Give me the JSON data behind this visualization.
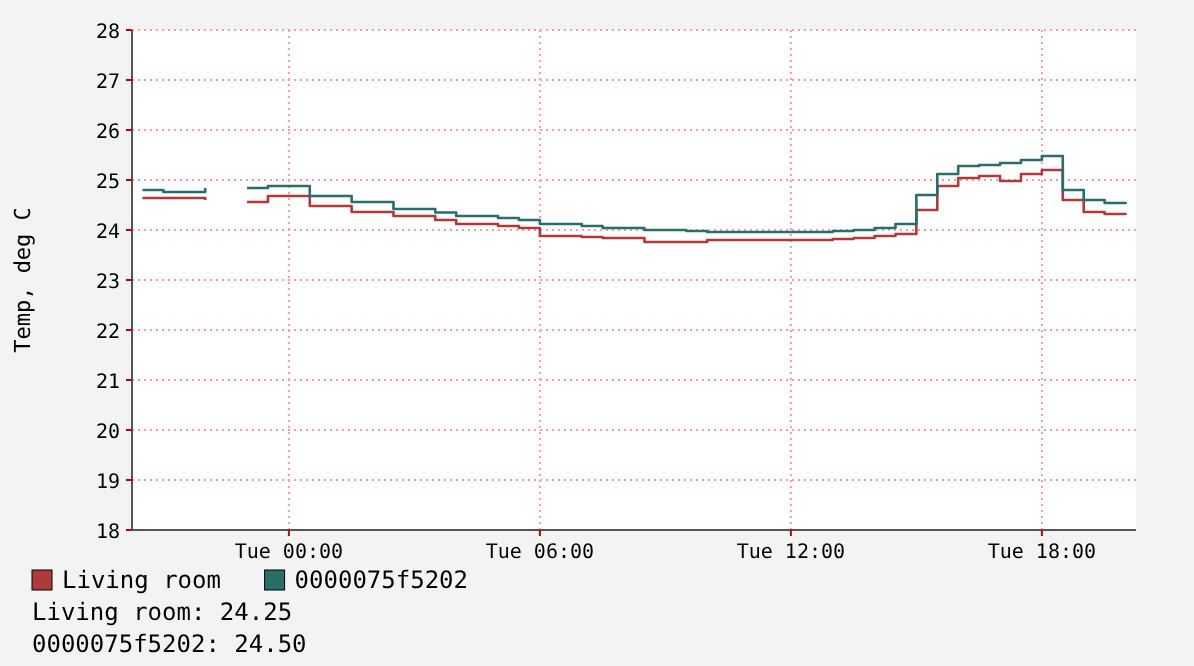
{
  "chart_data": {
    "type": "step",
    "ylabel": "Temp, deg C",
    "categories": [
      null,
      null,
      null,
      null,
      null,
      null,
      null,
      "Tue 00:00",
      null,
      null,
      null,
      null,
      null,
      null,
      null,
      null,
      null,
      null,
      null,
      "Tue 06:00",
      null,
      null,
      null,
      null,
      null,
      null,
      null,
      null,
      null,
      null,
      null,
      "Tue 12:00",
      null,
      null,
      null,
      null,
      null,
      null,
      null,
      null,
      null,
      null,
      null,
      "Tue 18:00",
      null,
      null,
      null,
      null
    ],
    "series": [
      {
        "name": "Living room",
        "color": "#b03a3a",
        "values": [
          24.64,
          24.64,
          24.64,
          24.6,
          null,
          24.56,
          24.68,
          24.68,
          24.48,
          24.48,
          24.36,
          24.36,
          24.28,
          24.28,
          24.2,
          24.12,
          24.12,
          24.08,
          24.04,
          23.88,
          23.88,
          23.86,
          23.84,
          23.84,
          23.76,
          23.76,
          23.76,
          23.8,
          23.8,
          23.8,
          23.8,
          23.8,
          23.8,
          23.82,
          23.84,
          23.88,
          23.92,
          24.4,
          24.88,
          25.04,
          25.08,
          24.98,
          25.12,
          25.2,
          24.6,
          24.36,
          24.32,
          24.3
        ]
      },
      {
        "name": "0000075f5202",
        "color": "#2a6e6a",
        "values": [
          24.8,
          24.76,
          24.76,
          24.84,
          null,
          24.84,
          24.88,
          24.88,
          24.68,
          24.68,
          24.56,
          24.56,
          24.42,
          24.42,
          24.35,
          24.28,
          24.28,
          24.24,
          24.2,
          24.12,
          24.12,
          24.08,
          24.04,
          24.04,
          24.0,
          24.0,
          23.98,
          23.96,
          23.96,
          23.96,
          23.96,
          23.96,
          23.96,
          23.98,
          24.0,
          24.04,
          24.12,
          24.7,
          25.12,
          25.28,
          25.3,
          25.34,
          25.4,
          25.48,
          24.8,
          24.6,
          24.54,
          24.52
        ]
      }
    ],
    "ylim": [
      18,
      28
    ],
    "yticks": [
      18,
      19,
      20,
      21,
      22,
      23,
      24,
      25,
      26,
      27,
      28
    ],
    "grid": true,
    "legend": "bottom",
    "annotations": [
      "Living room: 24.25",
      "0000075f5202: 24.50"
    ]
  }
}
